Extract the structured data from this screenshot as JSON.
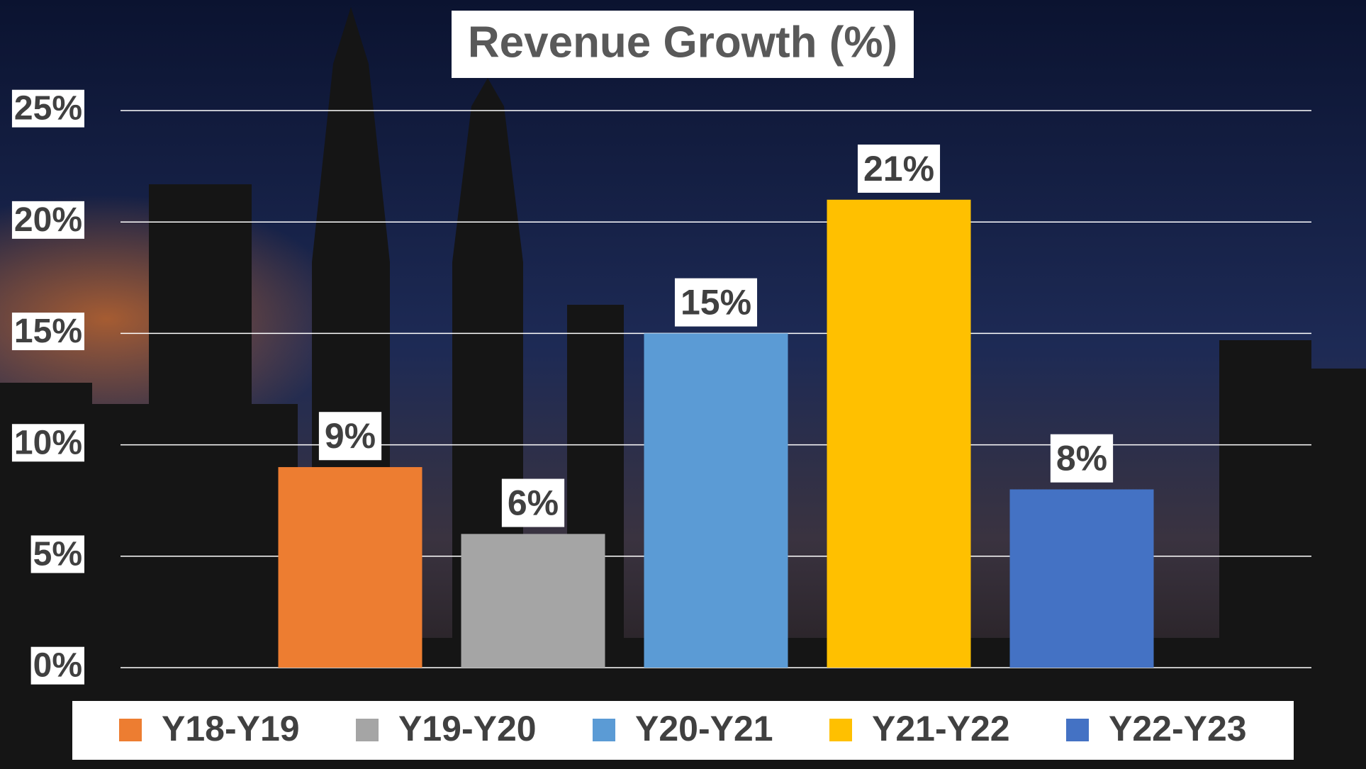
{
  "chart_data": {
    "type": "bar",
    "title": "Revenue Growth (%)",
    "series": [
      {
        "name": "Y18-Y19",
        "color": "#ed7d31",
        "values": [
          9
        ],
        "value_labels": [
          "9%"
        ]
      },
      {
        "name": "Y19-Y20",
        "color": "#a5a5a5",
        "values": [
          6
        ],
        "value_labels": [
          "6%"
        ]
      },
      {
        "name": "Y20-Y21",
        "color": "#5b9bd5",
        "values": [
          15
        ],
        "value_labels": [
          "15%"
        ]
      },
      {
        "name": "Y21-Y22",
        "color": "#ffc000",
        "values": [
          21
        ],
        "value_labels": [
          "21%"
        ]
      },
      {
        "name": "Y22-Y23",
        "color": "#4472c4",
        "values": [
          8
        ],
        "value_labels": [
          "8%"
        ]
      }
    ],
    "ylim": [
      0,
      25
    ],
    "yticks": [
      {
        "value": 0,
        "label": "0%"
      },
      {
        "value": 5,
        "label": "5%"
      },
      {
        "value": 10,
        "label": "10%"
      },
      {
        "value": 15,
        "label": "15%"
      },
      {
        "value": 20,
        "label": "20%"
      },
      {
        "value": 25,
        "label": "25%"
      }
    ],
    "grid": true,
    "legend": "bottom"
  }
}
